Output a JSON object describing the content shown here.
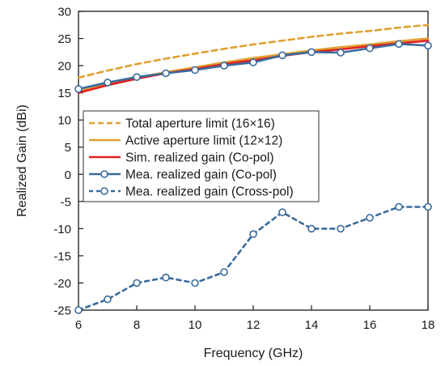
{
  "chart_data": {
    "type": "line",
    "xlabel": "Frequency (GHz)",
    "ylabel": "Realized Gain (dBi)",
    "xlim": [
      6,
      18
    ],
    "ylim": [
      -25,
      30
    ],
    "xticks": [
      6,
      8,
      10,
      12,
      14,
      16,
      18
    ],
    "yticks": [
      -25,
      -20,
      -15,
      -10,
      -5,
      0,
      5,
      10,
      15,
      20,
      25,
      30
    ],
    "grid": false,
    "legend_position": "middle-left",
    "series": [
      {
        "name": "Total aperture limit (16×16)",
        "style": "dashed",
        "marker": "none",
        "color": "#e0a030",
        "x": [
          6,
          7,
          8,
          9,
          10,
          11,
          12,
          13,
          14,
          15,
          16,
          17,
          18
        ],
        "y": [
          17.8,
          19.1,
          20.3,
          21.3,
          22.2,
          23.1,
          23.9,
          24.6,
          25.3,
          25.9,
          26.4,
          27.0,
          27.5
        ]
      },
      {
        "name": "Active aperture limit (12×12)",
        "style": "solid",
        "marker": "none",
        "color": "#e0a030",
        "x": [
          6,
          7,
          8,
          9,
          10,
          11,
          12,
          13,
          14,
          15,
          16,
          17,
          18
        ],
        "y": [
          15.3,
          16.6,
          17.8,
          18.8,
          19.7,
          20.6,
          21.4,
          22.1,
          22.8,
          23.4,
          23.9,
          24.5,
          25.0
        ]
      },
      {
        "name": "Sim. realized gain (Co-pol)",
        "style": "solid",
        "marker": "none",
        "color": "#e02020",
        "x": [
          6,
          7,
          8,
          9,
          10,
          11,
          12,
          13,
          14,
          15,
          16,
          17,
          18
        ],
        "y": [
          15.0,
          16.4,
          17.6,
          18.6,
          19.4,
          20.3,
          21.0,
          21.8,
          22.5,
          23.0,
          23.6,
          24.1,
          24.6
        ]
      },
      {
        "name": "Mea. realized gain (Co-pol)",
        "style": "solid",
        "marker": "circle",
        "color": "#3a6b9c",
        "x": [
          6,
          7,
          8,
          9,
          10,
          11,
          12,
          13,
          14,
          15,
          16,
          17,
          18
        ],
        "y": [
          15.7,
          16.9,
          17.9,
          18.6,
          19.2,
          20.0,
          20.6,
          21.9,
          22.5,
          22.4,
          23.2,
          24.0,
          23.7
        ]
      },
      {
        "name": "Mea. realized gain (Cross-pol)",
        "style": "dashed",
        "marker": "circle",
        "color": "#3a6b9c",
        "x": [
          6,
          7,
          8,
          9,
          10,
          11,
          12,
          13,
          14,
          15,
          16,
          17,
          18
        ],
        "y": [
          -25,
          -23,
          -20,
          -19,
          -20,
          -18,
          -11,
          -7,
          -10,
          -10,
          -8,
          -6,
          -6
        ]
      }
    ]
  }
}
